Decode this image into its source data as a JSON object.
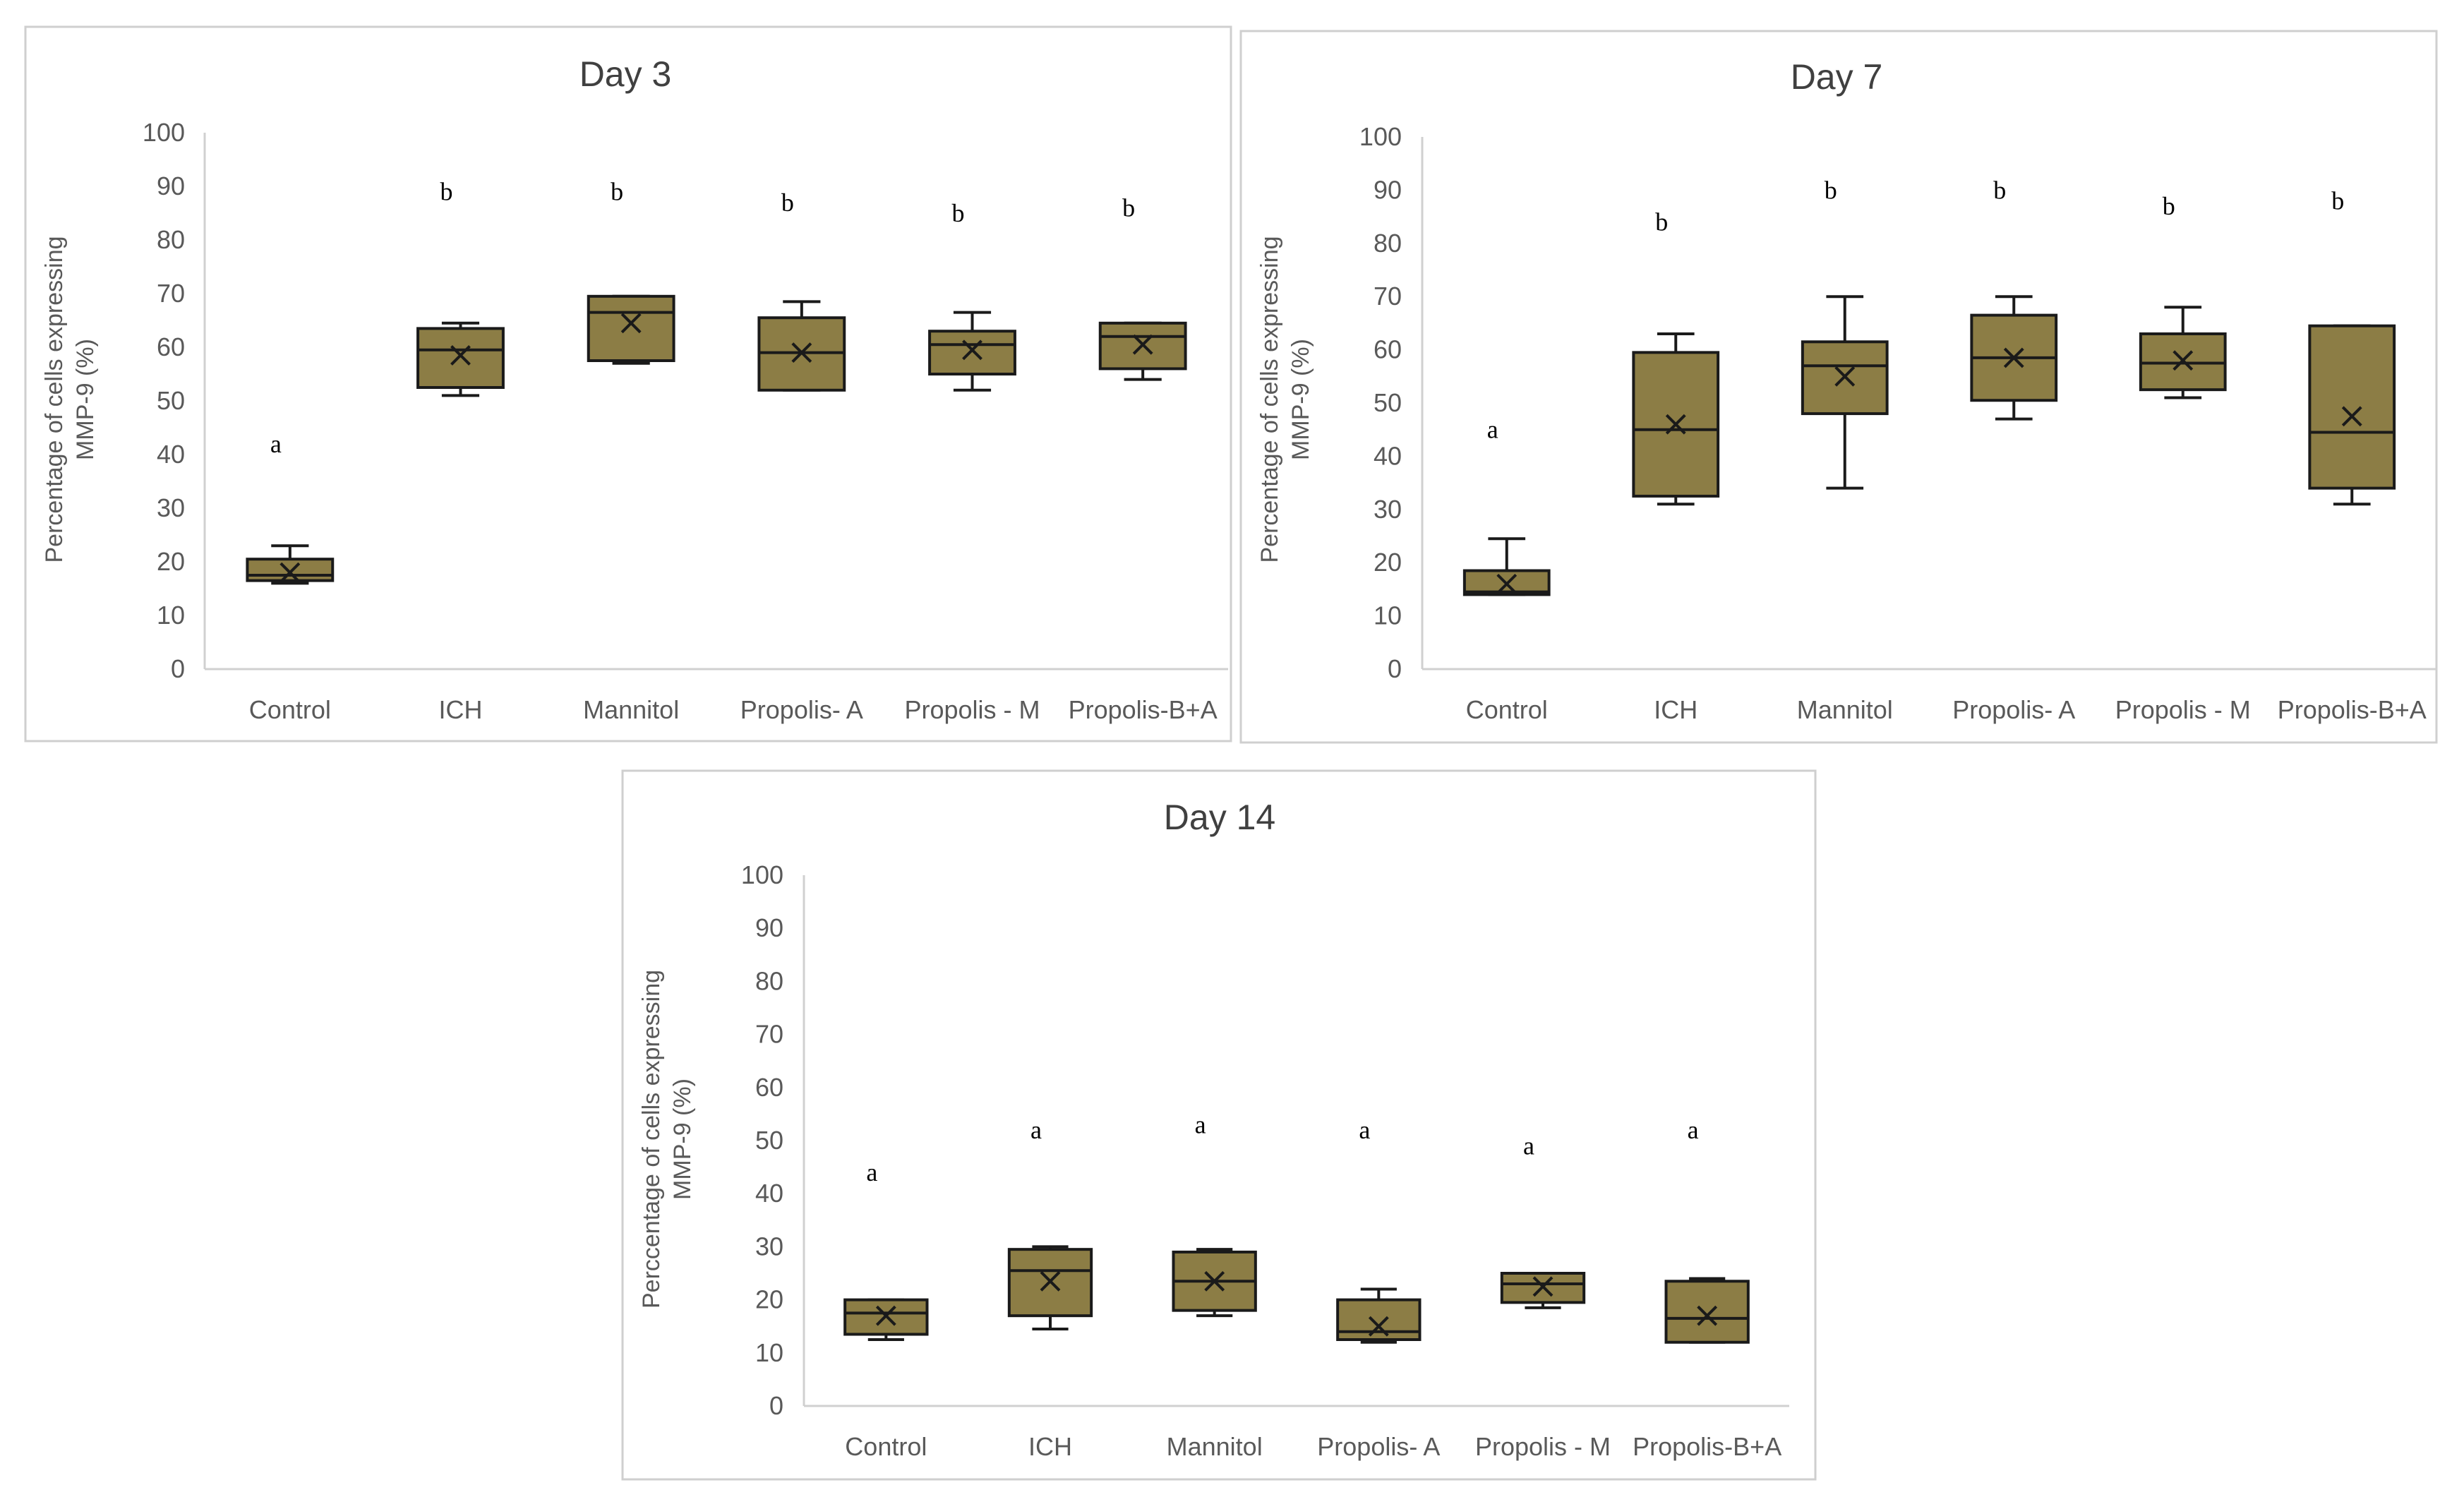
{
  "chart_data": [
    {
      "type": "boxplot",
      "title": "Day 3",
      "ylabel": [
        "Percentage of cells expressing",
        "MMP-9 (%)"
      ],
      "ylim": [
        0,
        100
      ],
      "yticks": [
        "0",
        "10",
        "20",
        "30",
        "40",
        "50",
        "60",
        "70",
        "80",
        "90",
        "100"
      ],
      "categories": [
        "Control",
        "ICH",
        "Mannitol",
        "Propolis- A",
        "Propolis - M",
        "Propolis-B+A"
      ],
      "box_color": "#8c7d45",
      "series": [
        {
          "category": "Control",
          "min": 16,
          "q1": 16.5,
          "median": 17.5,
          "q3": 20.5,
          "max": 23,
          "mean": 18,
          "letter": "a",
          "letter_y": 42
        },
        {
          "category": "ICH",
          "min": 51,
          "q1": 52.5,
          "median": 59.5,
          "q3": 63.5,
          "max": 64.5,
          "mean": 58.5,
          "letter": "b",
          "letter_y": 89
        },
        {
          "category": "Mannitol",
          "min": 57,
          "q1": 57.5,
          "median": 66.5,
          "q3": 69.5,
          "max": 69.5,
          "mean": 64.5,
          "letter": "b",
          "letter_y": 89
        },
        {
          "category": "Propolis- A",
          "min": 52,
          "q1": 52,
          "median": 59,
          "q3": 65.5,
          "max": 68.5,
          "mean": 59,
          "letter": "b",
          "letter_y": 87
        },
        {
          "category": "Propolis - M",
          "min": 52,
          "q1": 55,
          "median": 60.5,
          "q3": 63,
          "max": 66.5,
          "mean": 59.5,
          "letter": "b",
          "letter_y": 85
        },
        {
          "category": "Propolis-B+A",
          "min": 54,
          "q1": 56,
          "median": 62,
          "q3": 64.5,
          "max": 64.5,
          "mean": 60.5,
          "letter": "b",
          "letter_y": 86
        }
      ]
    },
    {
      "type": "boxplot",
      "title": "Day 7",
      "ylabel": [
        "Percentage of cells expressing",
        "MMP-9 (%)"
      ],
      "ylim": [
        0,
        100
      ],
      "yticks": [
        "0",
        "10",
        "20",
        "30",
        "40",
        "50",
        "60",
        "70",
        "80",
        "90",
        "100"
      ],
      "categories": [
        "Control",
        "ICH",
        "Mannitol",
        "Propolis- A",
        "Propolis - M",
        "Propolis-B+A"
      ],
      "box_color": "#8c7d45",
      "series": [
        {
          "category": "Control",
          "min": 14,
          "q1": 14,
          "median": 14.5,
          "q3": 18.5,
          "max": 24.5,
          "mean": 16,
          "letter": "a",
          "letter_y": 45
        },
        {
          "category": "ICH",
          "min": 31,
          "q1": 32.5,
          "median": 45,
          "q3": 59.5,
          "max": 63,
          "mean": 46,
          "letter": "b",
          "letter_y": 84
        },
        {
          "category": "Mannitol",
          "min": 34,
          "q1": 48,
          "median": 57,
          "q3": 61.5,
          "max": 70,
          "mean": 55,
          "letter": "b",
          "letter_y": 90
        },
        {
          "category": "Propolis- A",
          "min": 47,
          "q1": 50.5,
          "median": 58.5,
          "q3": 66.5,
          "max": 70,
          "mean": 58.5,
          "letter": "b",
          "letter_y": 90
        },
        {
          "category": "Propolis - M",
          "min": 51,
          "q1": 52.5,
          "median": 57.5,
          "q3": 63,
          "max": 68,
          "mean": 58,
          "letter": "b",
          "letter_y": 87
        },
        {
          "category": "Propolis-B+A",
          "min": 31,
          "q1": 34,
          "median": 44.5,
          "q3": 64.5,
          "max": 64.5,
          "mean": 47.5,
          "letter": "b",
          "letter_y": 88
        }
      ]
    },
    {
      "type": "boxplot",
      "title": "Day 14",
      "ylabel": [
        "Perccentage of cells expressing",
        "MMP-9 (%)"
      ],
      "ylim": [
        0,
        100
      ],
      "yticks": [
        "0",
        "10",
        "20",
        "30",
        "40",
        "50",
        "60",
        "70",
        "80",
        "90",
        "100"
      ],
      "categories": [
        "Control",
        "ICH",
        "Mannitol",
        "Propolis- A",
        "Propolis - M",
        "Propolis-B+A"
      ],
      "box_color": "#8c7d45",
      "series": [
        {
          "category": "Control",
          "min": 12.5,
          "q1": 13.5,
          "median": 17.5,
          "q3": 20,
          "max": 20,
          "mean": 17,
          "letter": "a",
          "letter_y": 44
        },
        {
          "category": "ICH",
          "min": 14.5,
          "q1": 17,
          "median": 25.5,
          "q3": 29.5,
          "max": 30,
          "mean": 23.5,
          "letter": "a",
          "letter_y": 52
        },
        {
          "category": "Mannitol",
          "min": 17,
          "q1": 18,
          "median": 23.5,
          "q3": 29,
          "max": 29.5,
          "mean": 23.5,
          "letter": "a",
          "letter_y": 53
        },
        {
          "category": "Propolis- A",
          "min": 12,
          "q1": 12.5,
          "median": 14,
          "q3": 20,
          "max": 22,
          "mean": 15,
          "letter": "a",
          "letter_y": 52
        },
        {
          "category": "Propolis - M",
          "min": 18.5,
          "q1": 19.5,
          "median": 23,
          "q3": 25,
          "max": 25,
          "mean": 22.5,
          "letter": "a",
          "letter_y": 49
        },
        {
          "category": "Propolis-B+A",
          "min": 12,
          "q1": 12,
          "median": 16.5,
          "q3": 23.5,
          "max": 24,
          "mean": 17,
          "letter": "a",
          "letter_y": 52
        }
      ]
    }
  ]
}
